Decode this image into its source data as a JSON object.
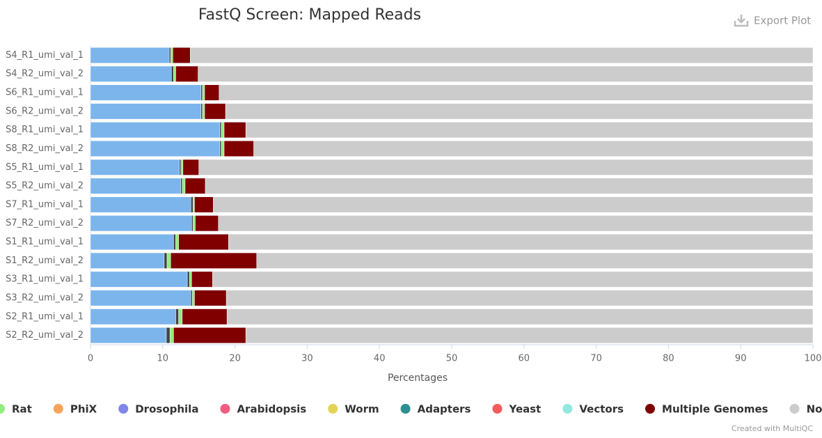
{
  "chart_data": {
    "type": "stacked-bar-horizontal",
    "title": "FastQ Screen: Mapped Reads",
    "x_label": "Percentages",
    "xlim": [
      0,
      100
    ],
    "xticks": [
      0,
      10,
      20,
      30,
      40,
      50,
      60,
      70,
      80,
      90,
      100
    ],
    "categories": [
      "S4_R1_umi_val_1",
      "S4_R2_umi_val_2",
      "S6_R1_umi_val_1",
      "S6_R2_umi_val_2",
      "S8_R1_umi_val_1",
      "S8_R2_umi_val_2",
      "S5_R1_umi_val_1",
      "S5_R2_umi_val_2",
      "S7_R1_umi_val_1",
      "S7_R2_umi_val_2",
      "S1_R1_umi_val_1",
      "S1_R2_umi_val_2",
      "S3_R1_umi_val_1",
      "S3_R2_umi_val_2",
      "S2_R1_umi_val_1",
      "S2_R2_umi_val_2"
    ],
    "series": [
      {
        "color": "#7cb5ec",
        "values": [
          10.9,
          11.2,
          15.3,
          15.3,
          17.9,
          17.9,
          12.3,
          12.5,
          13.9,
          14.0,
          11.5,
          10.2,
          13.4,
          13.9,
          11.8,
          10.5
        ]
      },
      {
        "color": "#434348",
        "values": [
          0.2,
          0.3,
          0.2,
          0.2,
          0.2,
          0.2,
          0.2,
          0.2,
          0.3,
          0.2,
          0.3,
          0.4,
          0.3,
          0.2,
          0.4,
          0.5
        ]
      },
      {
        "name": "Rat",
        "color": "#90ed7d",
        "values": [
          0.3,
          0.3,
          0.3,
          0.3,
          0.4,
          0.4,
          0.3,
          0.4,
          0.2,
          0.3,
          0.4,
          0.5,
          0.3,
          0.3,
          0.5,
          0.5
        ]
      },
      {
        "name": "PhiX",
        "color": "#f7a35c",
        "values": [
          0,
          0,
          0,
          0,
          0,
          0,
          0,
          0,
          0,
          0,
          0,
          0,
          0,
          0,
          0,
          0
        ]
      },
      {
        "name": "Drosophila",
        "color": "#8085e9",
        "values": [
          0,
          0,
          0,
          0,
          0,
          0,
          0,
          0,
          0,
          0,
          0,
          0,
          0,
          0,
          0,
          0
        ]
      },
      {
        "name": "Arabidopsis",
        "color": "#f15c80",
        "values": [
          0,
          0,
          0,
          0,
          0,
          0,
          0,
          0,
          0,
          0,
          0,
          0,
          0,
          0,
          0,
          0
        ]
      },
      {
        "name": "Worm",
        "color": "#e4d354",
        "values": [
          0,
          0,
          0,
          0,
          0,
          0,
          0,
          0,
          0,
          0,
          0,
          0,
          0,
          0,
          0,
          0
        ]
      },
      {
        "name": "Adapters",
        "color": "#2b908f",
        "values": [
          0,
          0,
          0,
          0,
          0,
          0,
          0,
          0,
          0,
          0,
          0,
          0,
          0,
          0,
          0,
          0
        ]
      },
      {
        "name": "Yeast",
        "color": "#f45b5b",
        "values": [
          0,
          0,
          0,
          0,
          0,
          0,
          0,
          0,
          0,
          0,
          0,
          0,
          0,
          0,
          0,
          0
        ]
      },
      {
        "name": "Vectors",
        "color": "#91e8e1",
        "values": [
          0,
          0,
          0,
          0,
          0,
          0,
          0,
          0,
          0,
          0,
          0,
          0,
          0,
          0,
          0,
          0
        ]
      },
      {
        "name": "Multiple Genomes",
        "color": "#800000",
        "values": [
          2.4,
          3.1,
          2.0,
          2.9,
          3.0,
          4.1,
          2.2,
          2.8,
          2.6,
          3.2,
          6.9,
          11.9,
          2.9,
          4.4,
          6.2,
          10.0
        ]
      },
      {
        "name": "No hits",
        "color": "#cccccc",
        "values": [
          86.2,
          85.1,
          82.2,
          81.3,
          78.5,
          77.4,
          85.0,
          84.1,
          83.0,
          82.3,
          80.9,
          77.0,
          83.1,
          81.2,
          81.1,
          78.5
        ]
      }
    ],
    "export_button": "Export Plot",
    "credit": "Created with MultiQC"
  }
}
